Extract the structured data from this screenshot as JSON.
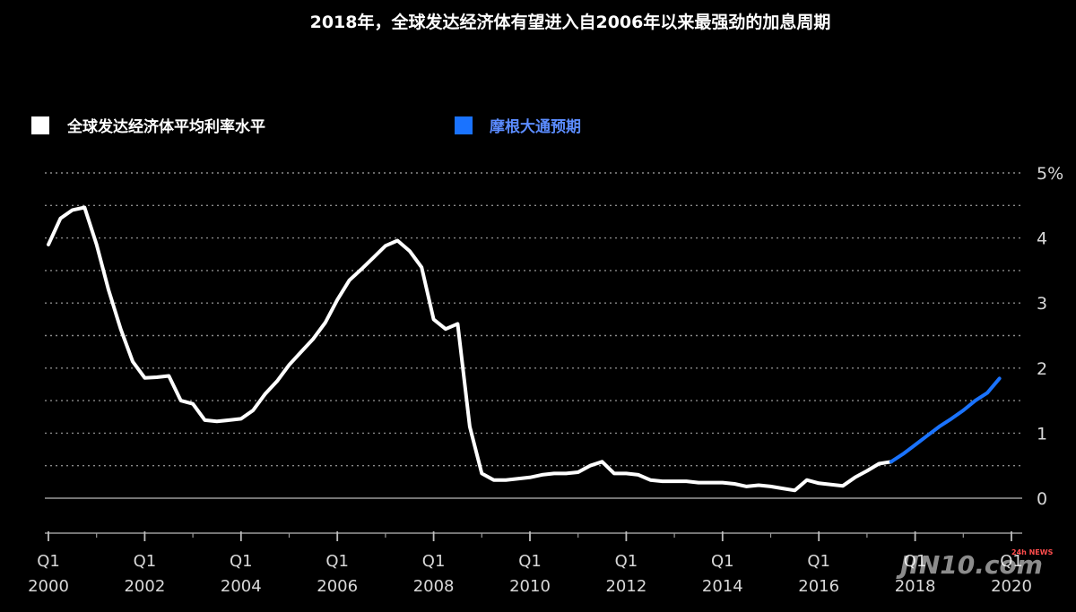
{
  "chart_data": {
    "type": "line",
    "title": "2018年，全球发达经济体有望进入自2006年以来最强劲的加息周期",
    "xlabel": "",
    "ylabel": "",
    "ylim": [
      0,
      5
    ],
    "xlim": [
      2000,
      2020
    ],
    "grid": true,
    "legend_placement": "top-left",
    "y_ticks": [
      {
        "value": 5,
        "label": "5%"
      },
      {
        "value": 4,
        "label": "4"
      },
      {
        "value": 3,
        "label": "3"
      },
      {
        "value": 2,
        "label": "2"
      },
      {
        "value": 1,
        "label": "1"
      },
      {
        "value": 0,
        "label": "0"
      }
    ],
    "x_ticks": [
      {
        "value": 2000,
        "q": "Q1",
        "year": "2000"
      },
      {
        "value": 2002,
        "q": "Q1",
        "year": "2002"
      },
      {
        "value": 2004,
        "q": "Q1",
        "year": "2004"
      },
      {
        "value": 2006,
        "q": "Q1",
        "year": "2006"
      },
      {
        "value": 2008,
        "q": "Q1",
        "year": "2008"
      },
      {
        "value": 2010,
        "q": "Q1",
        "year": "2010"
      },
      {
        "value": 2012,
        "q": "Q1",
        "year": "2012"
      },
      {
        "value": 2014,
        "q": "Q1",
        "year": "2014"
      },
      {
        "value": 2016,
        "q": "Q1",
        "year": "2016"
      },
      {
        "value": 2018,
        "q": "Q1",
        "year": "2018"
      },
      {
        "value": 2020,
        "q": "Q1",
        "year": "2020"
      }
    ],
    "series": [
      {
        "name": "全球发达经济体平均利率水平",
        "color": "#ffffff",
        "points": [
          [
            2000.0,
            3.9
          ],
          [
            2000.25,
            4.3
          ],
          [
            2000.5,
            4.43
          ],
          [
            2000.75,
            4.47
          ],
          [
            2001.0,
            3.9
          ],
          [
            2001.25,
            3.2
          ],
          [
            2001.5,
            2.6
          ],
          [
            2001.75,
            2.1
          ],
          [
            2002.0,
            1.85
          ],
          [
            2002.25,
            1.86
          ],
          [
            2002.5,
            1.88
          ],
          [
            2002.75,
            1.5
          ],
          [
            2003.0,
            1.45
          ],
          [
            2003.25,
            1.2
          ],
          [
            2003.5,
            1.18
          ],
          [
            2003.75,
            1.2
          ],
          [
            2004.0,
            1.22
          ],
          [
            2004.25,
            1.35
          ],
          [
            2004.5,
            1.6
          ],
          [
            2004.75,
            1.8
          ],
          [
            2005.0,
            2.05
          ],
          [
            2005.25,
            2.25
          ],
          [
            2005.5,
            2.45
          ],
          [
            2005.75,
            2.7
          ],
          [
            2006.0,
            3.05
          ],
          [
            2006.25,
            3.35
          ],
          [
            2006.5,
            3.52
          ],
          [
            2006.75,
            3.7
          ],
          [
            2007.0,
            3.88
          ],
          [
            2007.25,
            3.96
          ],
          [
            2007.5,
            3.8
          ],
          [
            2007.75,
            3.55
          ],
          [
            2008.0,
            2.75
          ],
          [
            2008.25,
            2.6
          ],
          [
            2008.5,
            2.68
          ],
          [
            2008.75,
            1.1
          ],
          [
            2009.0,
            0.38
          ],
          [
            2009.25,
            0.28
          ],
          [
            2009.5,
            0.28
          ],
          [
            2009.75,
            0.3
          ],
          [
            2010.0,
            0.32
          ],
          [
            2010.25,
            0.36
          ],
          [
            2010.5,
            0.38
          ],
          [
            2010.75,
            0.38
          ],
          [
            2011.0,
            0.4
          ],
          [
            2011.25,
            0.5
          ],
          [
            2011.5,
            0.56
          ],
          [
            2011.75,
            0.38
          ],
          [
            2012.0,
            0.38
          ],
          [
            2012.25,
            0.36
          ],
          [
            2012.5,
            0.28
          ],
          [
            2012.75,
            0.26
          ],
          [
            2013.0,
            0.26
          ],
          [
            2013.25,
            0.26
          ],
          [
            2013.5,
            0.24
          ],
          [
            2013.75,
            0.24
          ],
          [
            2014.0,
            0.24
          ],
          [
            2014.25,
            0.22
          ],
          [
            2014.5,
            0.18
          ],
          [
            2014.75,
            0.2
          ],
          [
            2015.0,
            0.18
          ],
          [
            2015.25,
            0.15
          ],
          [
            2015.5,
            0.12
          ],
          [
            2015.75,
            0.28
          ],
          [
            2016.0,
            0.23
          ],
          [
            2016.25,
            0.21
          ],
          [
            2016.5,
            0.19
          ],
          [
            2016.75,
            0.32
          ],
          [
            2017.0,
            0.42
          ],
          [
            2017.25,
            0.53
          ],
          [
            2017.5,
            0.56
          ]
        ]
      },
      {
        "name": "摩根大通预期",
        "color": "#1a73ff",
        "points": [
          [
            2017.5,
            0.56
          ],
          [
            2017.75,
            0.68
          ],
          [
            2018.0,
            0.82
          ],
          [
            2018.25,
            0.96
          ],
          [
            2018.5,
            1.1
          ],
          [
            2018.75,
            1.22
          ],
          [
            2019.0,
            1.35
          ],
          [
            2019.25,
            1.5
          ],
          [
            2019.5,
            1.62
          ],
          [
            2019.75,
            1.84
          ]
        ]
      }
    ]
  },
  "watermark": {
    "text": "JIN10.com",
    "badge": "24h NEWS"
  }
}
